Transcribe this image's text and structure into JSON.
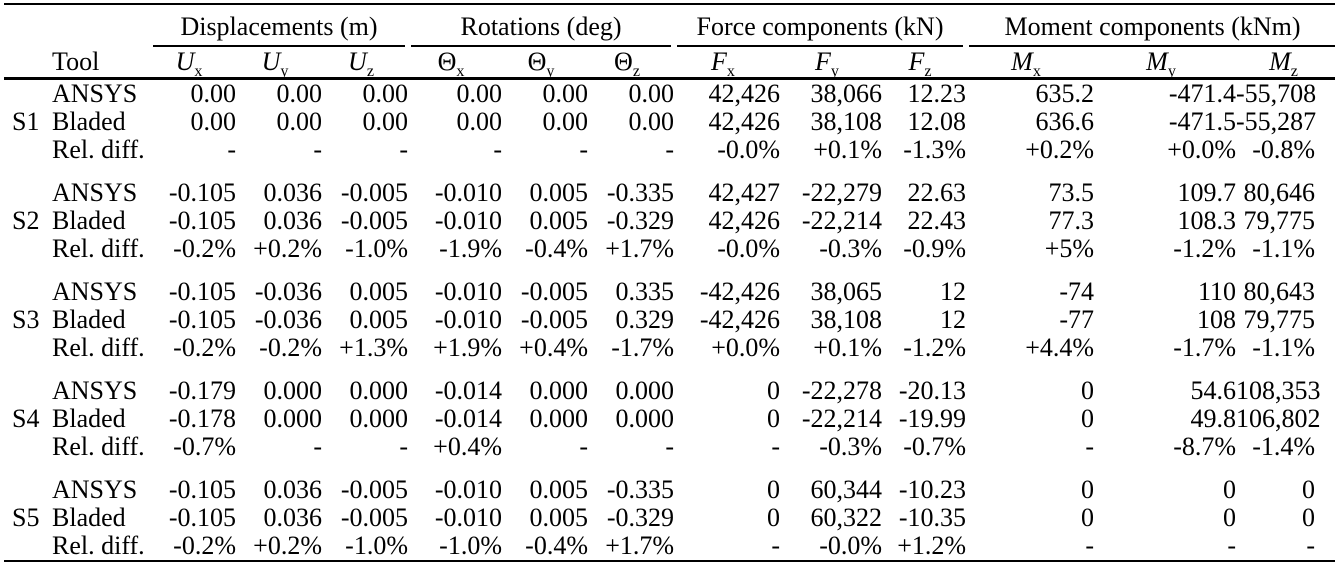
{
  "table": {
    "tool_header": "Tool",
    "row_tools": [
      "ANSYS",
      "Bladed",
      "Rel. diff."
    ],
    "groups": [
      {
        "label": "Displacements (m)",
        "columns": [
          {
            "base": "U",
            "sub": "x",
            "italic": true
          },
          {
            "base": "U",
            "sub": "y",
            "italic": true
          },
          {
            "base": "U",
            "sub": "z",
            "italic": true
          }
        ]
      },
      {
        "label": "Rotations (deg)",
        "columns": [
          {
            "base": "Θ",
            "sub": "x",
            "italic": false
          },
          {
            "base": "Θ",
            "sub": "y",
            "italic": false
          },
          {
            "base": "Θ",
            "sub": "z",
            "italic": false
          }
        ]
      },
      {
        "label": "Force components (kN)",
        "columns": [
          {
            "base": "F",
            "sub": "x",
            "italic": true
          },
          {
            "base": "F",
            "sub": "y",
            "italic": true
          },
          {
            "base": "F",
            "sub": "z",
            "italic": true
          }
        ]
      },
      {
        "label": "Moment components (kNm)",
        "columns": [
          {
            "base": "M",
            "sub": "x",
            "italic": true
          },
          {
            "base": "M",
            "sub": "y",
            "italic": true
          },
          {
            "base": "M",
            "sub": "z",
            "italic": true
          }
        ]
      }
    ],
    "sections": [
      {
        "id": "S1",
        "rows": [
          {
            "tool": "ANSYS",
            "values": [
              "0.00",
              "0.00",
              "0.00",
              "0.00",
              "0.00",
              "0.00",
              "42,426",
              "38,066",
              "12.23",
              "635.2",
              "-471.4",
              "-55,708"
            ]
          },
          {
            "tool": "Bladed",
            "values": [
              "0.00",
              "0.00",
              "0.00",
              "0.00",
              "0.00",
              "0.00",
              "42,426",
              "38,108",
              "12.08",
              "636.6",
              "-471.5",
              "-55,287"
            ]
          },
          {
            "tool": "Rel. diff.",
            "values": [
              "-",
              "-",
              "-",
              "-",
              "-",
              "-",
              "-0.0%",
              "+0.1%",
              "-1.3%",
              "+0.2%",
              "+0.0%",
              "-0.8%"
            ]
          }
        ]
      },
      {
        "id": "S2",
        "rows": [
          {
            "tool": "ANSYS",
            "values": [
              "-0.105",
              "0.036",
              "-0.005",
              "-0.010",
              "0.005",
              "-0.335",
              "42,427",
              "-22,279",
              "22.63",
              "73.5",
              "109.7",
              "80,646"
            ]
          },
          {
            "tool": "Bladed",
            "values": [
              "-0.105",
              "0.036",
              "-0.005",
              "-0.010",
              "0.005",
              "-0.329",
              "42,426",
              "-22,214",
              "22.43",
              "77.3",
              "108.3",
              "79,775"
            ]
          },
          {
            "tool": "Rel. diff.",
            "values": [
              "-0.2%",
              "+0.2%",
              "-1.0%",
              "-1.9%",
              "-0.4%",
              "+1.7%",
              "-0.0%",
              "-0.3%",
              "-0.9%",
              "+5%",
              "-1.2%",
              "-1.1%"
            ]
          }
        ]
      },
      {
        "id": "S3",
        "rows": [
          {
            "tool": "ANSYS",
            "values": [
              "-0.105",
              "-0.036",
              "0.005",
              "-0.010",
              "-0.005",
              "0.335",
              "-42,426",
              "38,065",
              "12",
              "-74",
              "110",
              "80,643"
            ]
          },
          {
            "tool": "Bladed",
            "values": [
              "-0.105",
              "-0.036",
              "0.005",
              "-0.010",
              "-0.005",
              "0.329",
              "-42,426",
              "38,108",
              "12",
              "-77",
              "108",
              "79,775"
            ]
          },
          {
            "tool": "Rel. diff.",
            "values": [
              "-0.2%",
              "-0.2%",
              "+1.3%",
              "+1.9%",
              "+0.4%",
              "-1.7%",
              "+0.0%",
              "+0.1%",
              "-1.2%",
              "+4.4%",
              "-1.7%",
              "-1.1%"
            ]
          }
        ]
      },
      {
        "id": "S4",
        "rows": [
          {
            "tool": "ANSYS",
            "values": [
              "-0.179",
              "0.000",
              "0.000",
              "-0.014",
              "0.000",
              "0.000",
              "0",
              "-22,278",
              "-20.13",
              "0",
              "54.6",
              "108,353"
            ]
          },
          {
            "tool": "Bladed",
            "values": [
              "-0.178",
              "0.000",
              "0.000",
              "-0.014",
              "0.000",
              "0.000",
              "0",
              "-22,214",
              "-19.99",
              "0",
              "49.8",
              "106,802"
            ]
          },
          {
            "tool": "Rel. diff.",
            "values": [
              "-0.7%",
              "-",
              "-",
              "+0.4%",
              "-",
              "-",
              "-",
              "-0.3%",
              "-0.7%",
              "-",
              "-8.7%",
              "-1.4%"
            ]
          }
        ]
      },
      {
        "id": "S5",
        "rows": [
          {
            "tool": "ANSYS",
            "values": [
              "-0.105",
              "0.036",
              "-0.005",
              "-0.010",
              "0.005",
              "-0.335",
              "0",
              "60,344",
              "-10.23",
              "0",
              "0",
              "0"
            ]
          },
          {
            "tool": "Bladed",
            "values": [
              "-0.105",
              "0.036",
              "-0.005",
              "-0.010",
              "0.005",
              "-0.329",
              "0",
              "60,322",
              "-10.35",
              "0",
              "0",
              "0"
            ]
          },
          {
            "tool": "Rel. diff.",
            "values": [
              "-0.2%",
              "+0.2%",
              "-1.0%",
              "-1.0%",
              "-0.4%",
              "+1.7%",
              "-",
              "-0.0%",
              "+1.2%",
              "-",
              "-",
              "-"
            ]
          }
        ]
      }
    ]
  }
}
